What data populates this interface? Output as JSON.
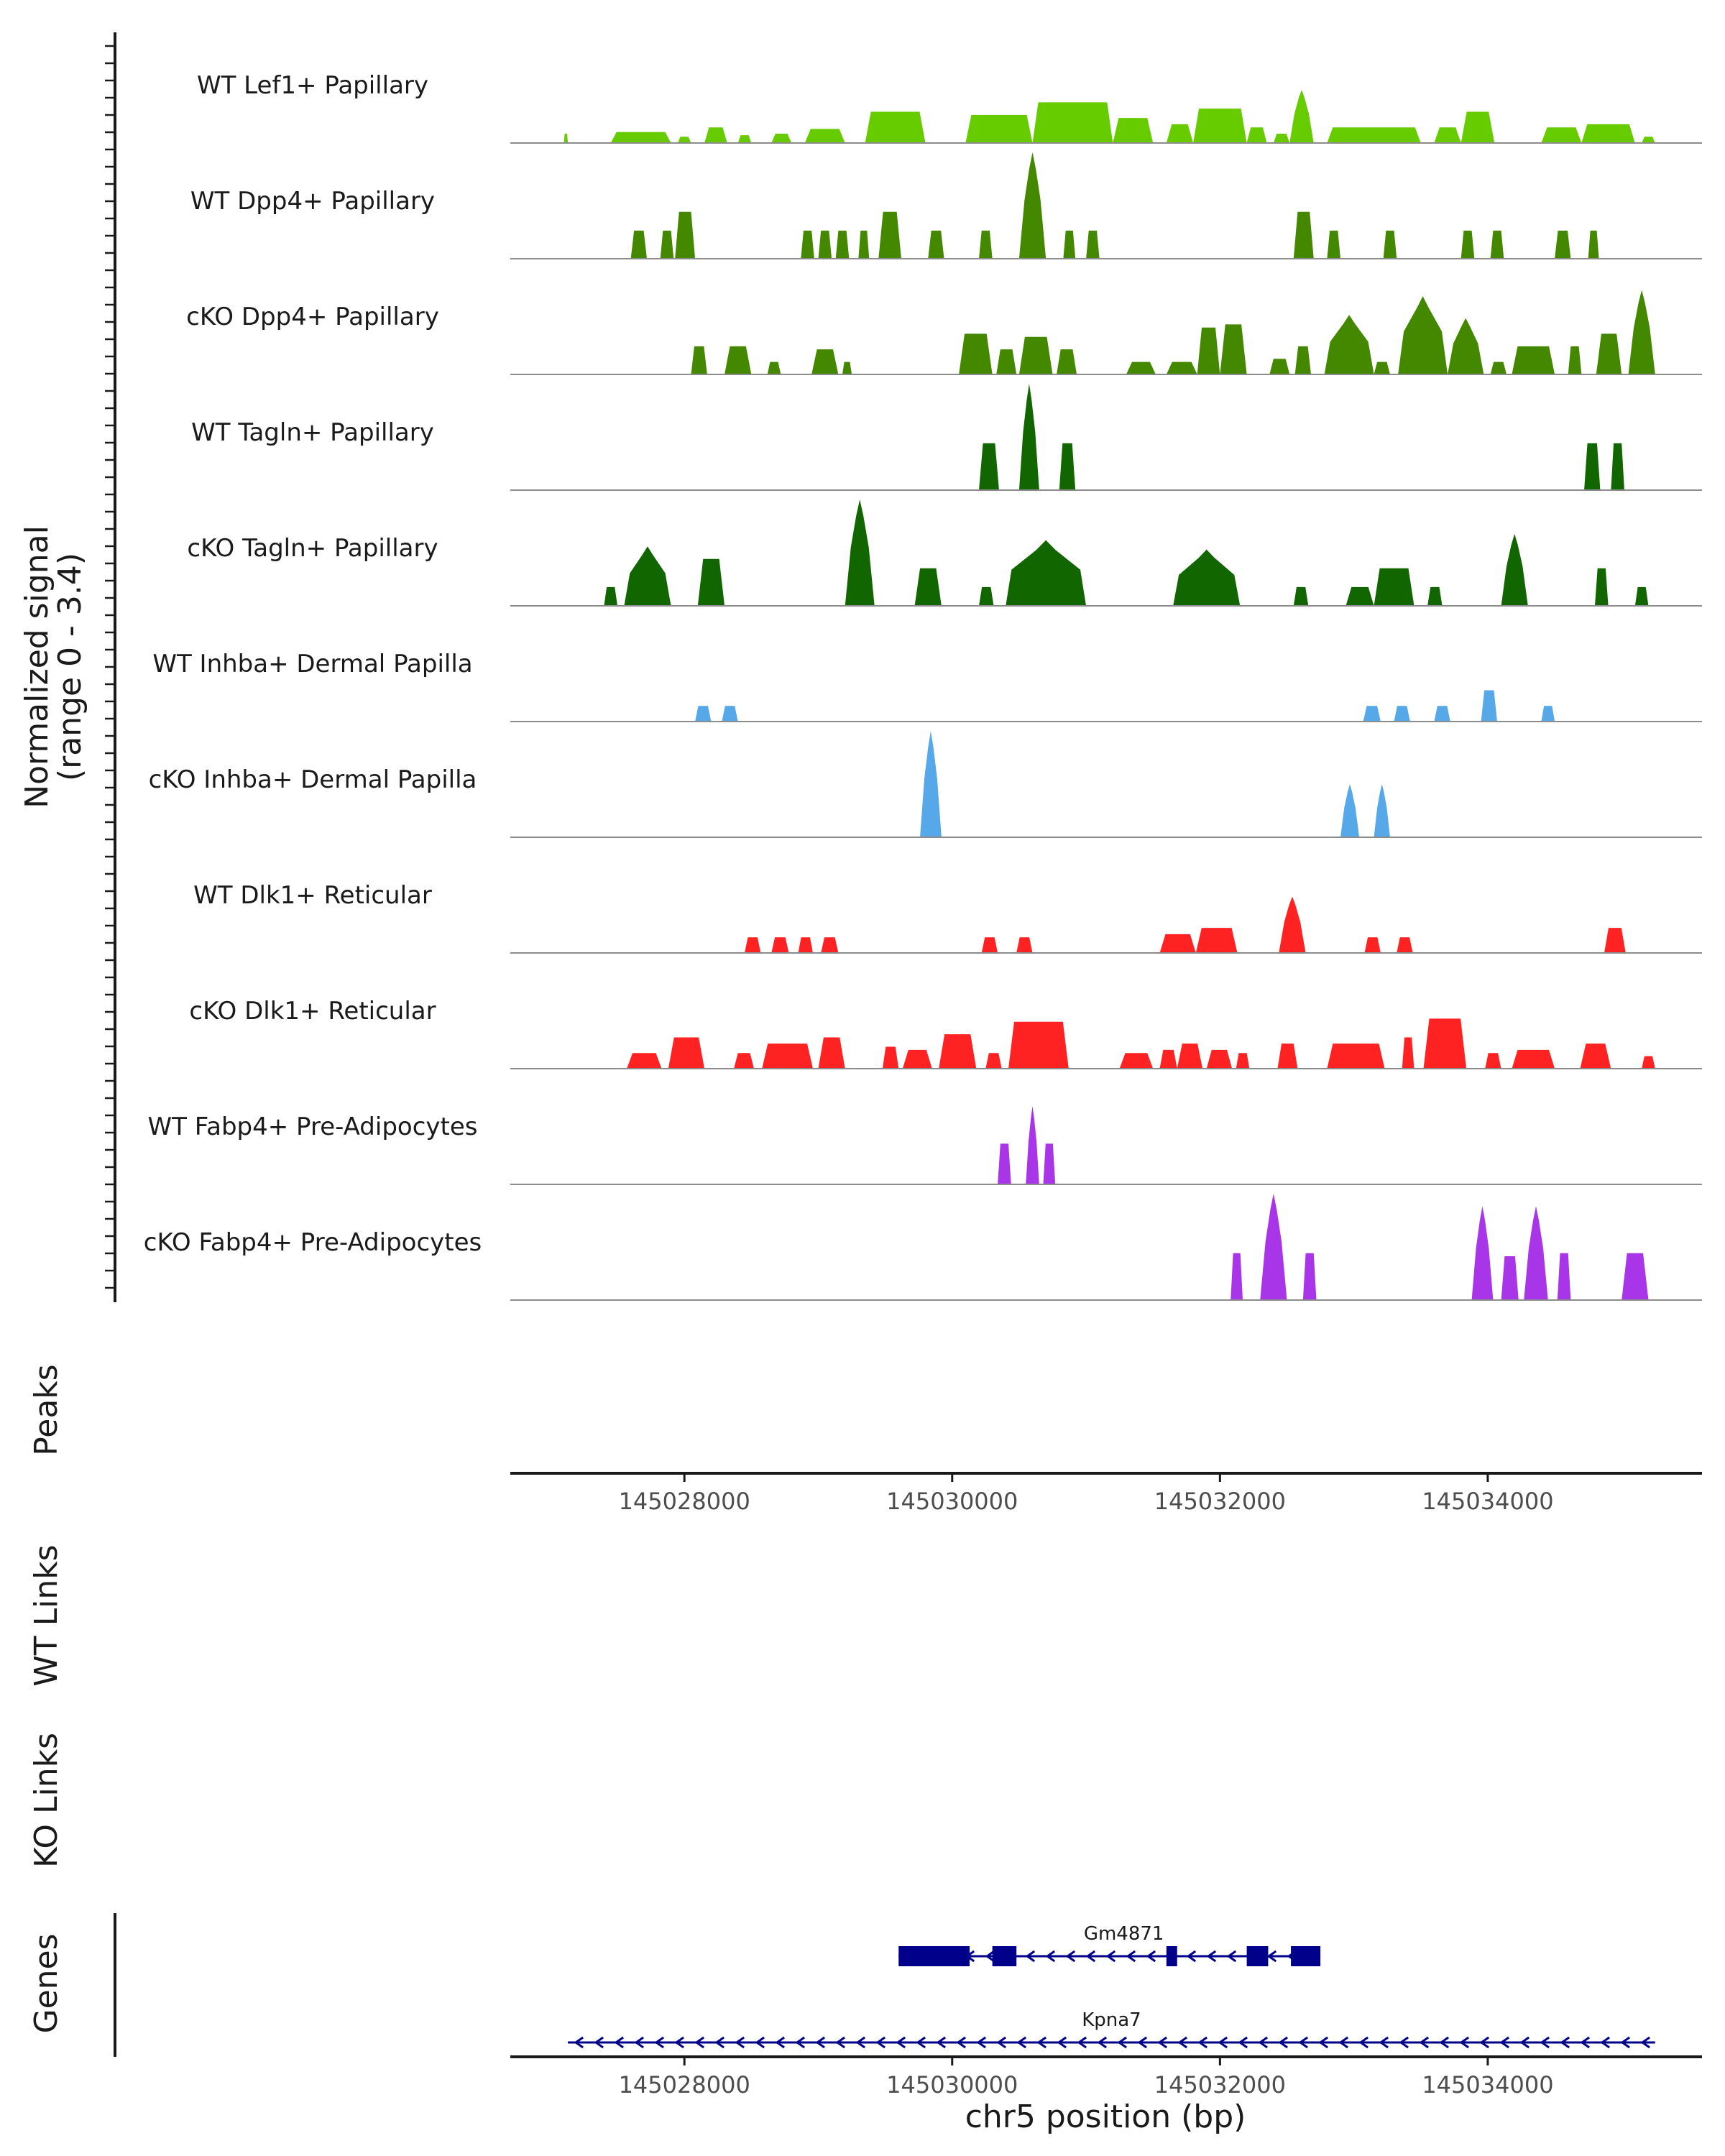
{
  "chart_data": {
    "type": "area",
    "title": "",
    "ylabel": "Normalized signal",
    "ylabel_range": "(range 0 - 3.4)",
    "ylim": [
      0,
      3.4
    ],
    "xlabel": "chr5 position (bp)",
    "xlim": [
      145026700,
      145035600
    ],
    "xticks": [
      145028000,
      145030000,
      145032000,
      145034000
    ],
    "xtick_labels": [
      "145028000",
      "145030000",
      "145032000",
      "145034000"
    ],
    "panel_labels": {
      "peaks": "Peaks",
      "wt_links": "WT Links",
      "ko_links": "KO Links",
      "genes": "Genes"
    },
    "series": [
      {
        "name": "WT Lef1+ Papillary",
        "color": "#66CC00",
        "peaks": [
          [
            145027100,
            145027130,
            0.3
          ],
          [
            145027450,
            145027900,
            0.35
          ],
          [
            145027950,
            145028050,
            0.2
          ],
          [
            145028150,
            145028320,
            0.5
          ],
          [
            145028400,
            145028500,
            0.25
          ],
          [
            145028650,
            145028800,
            0.3
          ],
          [
            145028900,
            145029200,
            0.45
          ],
          [
            145029350,
            145029800,
            1.0
          ],
          [
            145030100,
            145030600,
            0.9
          ],
          [
            145030600,
            145031200,
            1.3
          ],
          [
            145031200,
            145031500,
            0.8
          ],
          [
            145031600,
            145031800,
            0.6
          ],
          [
            145031800,
            145032200,
            1.1
          ],
          [
            145032200,
            145032350,
            0.5
          ],
          [
            145032400,
            145032520,
            0.3
          ],
          [
            145032520,
            145032700,
            1.7
          ],
          [
            145032800,
            145033500,
            0.5
          ],
          [
            145033600,
            145033800,
            0.5
          ],
          [
            145033800,
            145034050,
            1.0
          ],
          [
            145034400,
            145034700,
            0.5
          ],
          [
            145034700,
            145035100,
            0.6
          ],
          [
            145035150,
            145035250,
            0.2
          ]
        ]
      },
      {
        "name": "WT Dpp4+ Papillary",
        "color": "#448800",
        "peaks": [
          [
            145027600,
            145027720,
            0.9
          ],
          [
            145027820,
            145027920,
            0.9
          ],
          [
            145027930,
            145028080,
            1.5
          ],
          [
            145028870,
            145028970,
            0.9
          ],
          [
            145029000,
            145029100,
            0.9
          ],
          [
            145029130,
            145029230,
            0.9
          ],
          [
            145029300,
            145029380,
            0.9
          ],
          [
            145029450,
            145029620,
            1.5
          ],
          [
            145029820,
            145029940,
            0.9
          ],
          [
            145030200,
            145030300,
            0.9
          ],
          [
            145030500,
            145030700,
            3.4
          ],
          [
            145030830,
            145030920,
            0.9
          ],
          [
            145031000,
            145031100,
            0.9
          ],
          [
            145032550,
            145032700,
            1.5
          ],
          [
            145032800,
            145032900,
            0.9
          ],
          [
            145033220,
            145033320,
            0.9
          ],
          [
            145033800,
            145033900,
            0.9
          ],
          [
            145034020,
            145034120,
            0.9
          ],
          [
            145034500,
            145034620,
            0.9
          ],
          [
            145034750,
            145034830,
            0.9
          ]
        ]
      },
      {
        "name": "cKO Dpp4+ Papillary",
        "color": "#448800",
        "peaks": [
          [
            145028050,
            145028170,
            0.9
          ],
          [
            145028300,
            145028500,
            0.9
          ],
          [
            145028620,
            145028720,
            0.4
          ],
          [
            145028950,
            145029150,
            0.8
          ],
          [
            145029180,
            145029250,
            0.4
          ],
          [
            145030050,
            145030300,
            1.3
          ],
          [
            145030330,
            145030480,
            0.8
          ],
          [
            145030500,
            145030750,
            1.2
          ],
          [
            145030780,
            145030930,
            0.8
          ],
          [
            145031300,
            145031520,
            0.4
          ],
          [
            145031600,
            145031830,
            0.4
          ],
          [
            145031830,
            145032000,
            1.5
          ],
          [
            145032000,
            145032200,
            1.6
          ],
          [
            145032370,
            145032520,
            0.5
          ],
          [
            145032560,
            145032680,
            0.9
          ],
          [
            145032780,
            145033150,
            1.9
          ],
          [
            145033150,
            145033270,
            0.4
          ],
          [
            145033330,
            145033700,
            2.5
          ],
          [
            145033700,
            145033970,
            1.8
          ],
          [
            145034020,
            145034140,
            0.4
          ],
          [
            145034180,
            145034500,
            0.9
          ],
          [
            145034600,
            145034700,
            0.9
          ],
          [
            145034810,
            145035000,
            1.3
          ],
          [
            145035050,
            145035250,
            2.7
          ]
        ]
      },
      {
        "name": "WT Tagln+ Papillary",
        "color": "#116600",
        "peaks": [
          [
            145030200,
            145030350,
            1.5
          ],
          [
            145030500,
            145030650,
            3.4
          ],
          [
            145030800,
            145030920,
            1.5
          ],
          [
            145034720,
            145034840,
            1.5
          ],
          [
            145034920,
            145035020,
            1.5
          ]
        ]
      },
      {
        "name": "cKO Tagln+ Papillary",
        "color": "#116600",
        "peaks": [
          [
            145027400,
            145027500,
            0.6
          ],
          [
            145027550,
            145027900,
            1.9
          ],
          [
            145028100,
            145028300,
            1.5
          ],
          [
            145029200,
            145029420,
            3.4
          ],
          [
            145029720,
            145029920,
            1.2
          ],
          [
            145030200,
            145030310,
            0.6
          ],
          [
            145030400,
            145031000,
            2.1
          ],
          [
            145031650,
            145032150,
            1.8
          ],
          [
            145032550,
            145032660,
            0.6
          ],
          [
            145032940,
            145033150,
            0.6
          ],
          [
            145033150,
            145033450,
            1.2
          ],
          [
            145033550,
            145033660,
            0.6
          ],
          [
            145034100,
            145034300,
            2.3
          ],
          [
            145034800,
            145034900,
            1.2
          ],
          [
            145035100,
            145035200,
            0.6
          ]
        ]
      },
      {
        "name": "WT Inhba+ Dermal Papilla",
        "color": "#56A8E8",
        "peaks": [
          [
            145028080,
            145028200,
            0.5
          ],
          [
            145028280,
            145028400,
            0.5
          ],
          [
            145033070,
            145033200,
            0.5
          ],
          [
            145033300,
            145033420,
            0.5
          ],
          [
            145033600,
            145033720,
            0.5
          ],
          [
            145033950,
            145034070,
            1.0
          ],
          [
            145034400,
            145034500,
            0.5
          ]
        ]
      },
      {
        "name": "cKO Inhba+ Dermal Papilla",
        "color": "#56A8E8",
        "peaks": [
          [
            145029760,
            145029920,
            3.4
          ],
          [
            145032900,
            145033040,
            1.7
          ],
          [
            145033150,
            145033270,
            1.7
          ]
        ]
      },
      {
        "name": "WT Dlk1+ Reticular",
        "color": "#FF2222",
        "peaks": [
          [
            145028450,
            145028570,
            0.5
          ],
          [
            145028650,
            145028780,
            0.5
          ],
          [
            145028850,
            145028960,
            0.5
          ],
          [
            145029020,
            145029150,
            0.5
          ],
          [
            145030220,
            145030340,
            0.5
          ],
          [
            145030480,
            145030600,
            0.5
          ],
          [
            145031550,
            145031820,
            0.6
          ],
          [
            145031820,
            145032130,
            0.8
          ],
          [
            145032440,
            145032640,
            1.8
          ],
          [
            145033080,
            145033200,
            0.5
          ],
          [
            145033320,
            145033440,
            0.5
          ],
          [
            145034870,
            145035030,
            0.8
          ]
        ]
      },
      {
        "name": "cKO Dlk1+ Reticular",
        "color": "#FF2222",
        "peaks": [
          [
            145027570,
            145027830,
            0.5
          ],
          [
            145027880,
            145028150,
            1.0
          ],
          [
            145028370,
            145028520,
            0.5
          ],
          [
            145028580,
            145028960,
            0.8
          ],
          [
            145029000,
            145029200,
            1.0
          ],
          [
            145029480,
            145029600,
            0.7
          ],
          [
            145029630,
            145029850,
            0.6
          ],
          [
            145029900,
            145030180,
            1.1
          ],
          [
            145030250,
            145030370,
            0.5
          ],
          [
            145030420,
            145030870,
            1.5
          ],
          [
            145031250,
            145031500,
            0.5
          ],
          [
            145031550,
            145031680,
            0.6
          ],
          [
            145031680,
            145031870,
            0.8
          ],
          [
            145031900,
            145032090,
            0.6
          ],
          [
            145032120,
            145032220,
            0.5
          ],
          [
            145032430,
            145032580,
            0.8
          ],
          [
            145032800,
            145033230,
            0.8
          ],
          [
            145033360,
            145033450,
            1.0
          ],
          [
            145033520,
            145033840,
            1.6
          ],
          [
            145033980,
            145034100,
            0.5
          ],
          [
            145034180,
            145034500,
            0.6
          ],
          [
            145034690,
            145034920,
            0.8
          ],
          [
            145035150,
            145035250,
            0.4
          ]
        ]
      },
      {
        "name": "WT Fabp4+ Pre-Adipocytes",
        "color": "#A935E8",
        "peaks": [
          [
            145030340,
            145030440,
            1.3
          ],
          [
            145030550,
            145030650,
            2.5
          ],
          [
            145030680,
            145030770,
            1.3
          ]
        ]
      },
      {
        "name": "cKO Fabp4+ Pre-Adipocytes",
        "color": "#A935E8",
        "peaks": [
          [
            145032080,
            145032170,
            1.5
          ],
          [
            145032300,
            145032500,
            3.4
          ],
          [
            145032620,
            145032720,
            1.5
          ],
          [
            145033880,
            145034040,
            3.0
          ],
          [
            145034100,
            145034230,
            1.4
          ],
          [
            145034270,
            145034450,
            3.0
          ],
          [
            145034520,
            145034620,
            1.5
          ],
          [
            145035000,
            145035200,
            1.5
          ]
        ]
      }
    ],
    "genes": [
      {
        "name": "Gm4871",
        "start": 145029600,
        "end": 145032750,
        "strand": "-",
        "exons": [
          [
            145029600,
            145030130
          ],
          [
            145030300,
            145030480
          ],
          [
            145031600,
            145031680
          ],
          [
            145032200,
            145032360
          ],
          [
            145032530,
            145032750
          ]
        ]
      },
      {
        "name": "Kpna7",
        "start": 145027130,
        "end": 145035250,
        "strand": "-",
        "exons": []
      }
    ]
  }
}
